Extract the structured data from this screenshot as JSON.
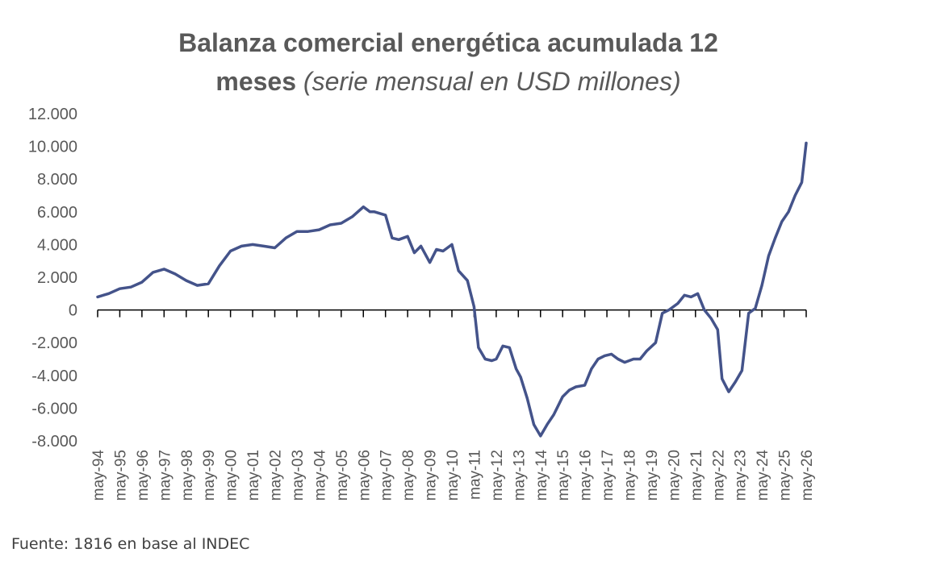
{
  "chart_data": {
    "type": "line",
    "title": "Balanza comercial energética acumulada 12",
    "title_line2_bold": "meses",
    "subtitle": "(serie mensual en USD millones)",
    "xlabel": "",
    "ylabel": "",
    "ylim": [
      -8000,
      12000
    ],
    "yticks": [
      -8000,
      -6000,
      -4000,
      -2000,
      0,
      2000,
      4000,
      6000,
      8000,
      10000,
      12000
    ],
    "ytick_labels": [
      "-8.000",
      "-6.000",
      "-4.000",
      "-2.000",
      "0",
      "2.000",
      "4.000",
      "6.000",
      "8.000",
      "10.000",
      "12.000"
    ],
    "xtick_labels": [
      "may-94",
      "may-95",
      "may-96",
      "may-97",
      "may-98",
      "may-99",
      "may-00",
      "may-01",
      "may-02",
      "may-03",
      "may-04",
      "may-05",
      "may-06",
      "may-07",
      "may-08",
      "may-09",
      "may-10",
      "may-11",
      "may-12",
      "may-13",
      "may-14",
      "may-15",
      "may-16",
      "may-17",
      "may-18",
      "may-19",
      "may-20",
      "may-21",
      "may-22",
      "may-23",
      "may-24",
      "may-25",
      "may-26"
    ],
    "grid": false,
    "legend": "none",
    "line_color": "#44538a",
    "x": [
      1994.0,
      1994.5,
      1995.0,
      1995.5,
      1996.0,
      1996.5,
      1997.0,
      1997.5,
      1998.0,
      1998.5,
      1999.0,
      1999.5,
      2000.0,
      2000.5,
      2001.0,
      2001.5,
      2002.0,
      2002.5,
      2003.0,
      2003.5,
      2004.0,
      2004.5,
      2005.0,
      2005.5,
      2006.0,
      2006.3,
      2006.5,
      2007.0,
      2007.3,
      2007.6,
      2008.0,
      2008.3,
      2008.6,
      2009.0,
      2009.3,
      2009.6,
      2010.0,
      2010.3,
      2010.7,
      2011.0,
      2011.2,
      2011.5,
      2011.8,
      2012.0,
      2012.3,
      2012.6,
      2012.9,
      2013.1,
      2013.4,
      2013.7,
      2014.0,
      2014.3,
      2014.6,
      2015.0,
      2015.3,
      2015.6,
      2016.0,
      2016.3,
      2016.6,
      2016.9,
      2017.2,
      2017.5,
      2017.8,
      2018.2,
      2018.5,
      2018.8,
      2019.2,
      2019.5,
      2019.8,
      2020.2,
      2020.5,
      2020.8,
      2021.1,
      2021.4,
      2021.7,
      2022.0,
      2022.2,
      2022.5,
      2022.8,
      2023.1,
      2023.4,
      2023.7,
      2024.0,
      2024.3,
      2024.6,
      2024.9,
      2025.2,
      2025.5,
      2025.8,
      2026.0
    ],
    "y": [
      800,
      1000,
      1300,
      1400,
      1700,
      2300,
      2500,
      2200,
      1800,
      1500,
      1600,
      2700,
      3600,
      3900,
      4000,
      3900,
      3800,
      4400,
      4800,
      4800,
      4900,
      5200,
      5300,
      5700,
      6300,
      6000,
      6000,
      5800,
      4400,
      4300,
      4500,
      3500,
      3900,
      2900,
      3700,
      3600,
      4000,
      2400,
      1800,
      200,
      -2300,
      -3000,
      -3100,
      -3000,
      -2200,
      -2300,
      -3600,
      -4100,
      -5400,
      -7000,
      -7700,
      -7000,
      -6400,
      -5300,
      -4900,
      -4700,
      -4600,
      -3600,
      -3000,
      -2800,
      -2700,
      -3000,
      -3200,
      -3000,
      -3000,
      -2500,
      -2000,
      -200,
      0,
      400,
      900,
      800,
      1000,
      0,
      -500,
      -1200,
      -4200,
      -5000,
      -4400,
      -3700,
      -200,
      100,
      1500,
      3300,
      4400,
      5400,
      6000,
      7000,
      7800,
      10200
    ]
  },
  "source": "Fuente: 1816 en base al INDEC"
}
